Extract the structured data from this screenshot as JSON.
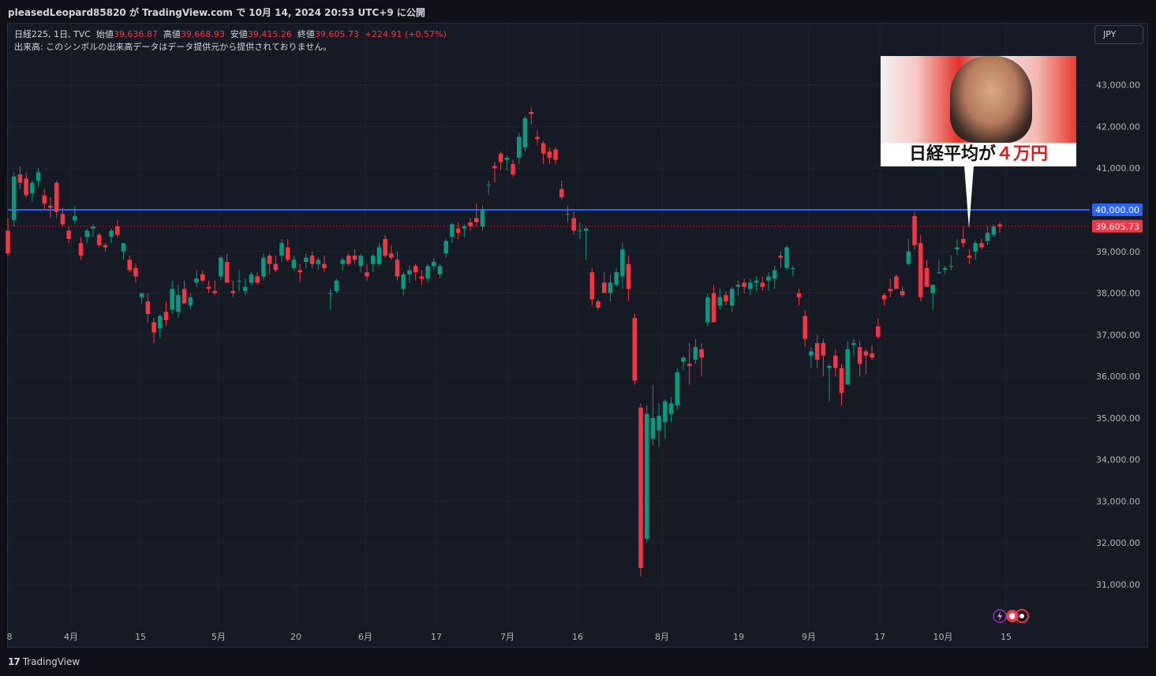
{
  "header": {
    "publish_line": "pleasedLeopard85820 が TradingView.com で 10月 14, 2024 20:53 UTC+9 に公開"
  },
  "legend": {
    "symbol": "日経225, 1日, TVC",
    "open_label": "始値",
    "open_value": "39,636.87",
    "high_label": "高値",
    "high_value": "39,668.93",
    "low_label": "安値",
    "low_value": "39,415.26",
    "close_label": "終値",
    "close_value": "39,605.73",
    "change": "+224.91 (+0.57%)",
    "volume_note": "出来高: このシンボルの出来高データはデータ提供元から提供されておりません。"
  },
  "currency_button": "JPY",
  "footer": {
    "brand": "TradingView",
    "logo": "17"
  },
  "thumbnail": {
    "caption_prefix": "日経平均が",
    "caption_highlight": "４万円"
  },
  "colors": {
    "up": "#089981",
    "down": "#f23645",
    "hline": "#2962ff",
    "background": "#161a25",
    "grid": "#1f2330",
    "text": "#b2b5be"
  },
  "chart_data": {
    "type": "candlestick",
    "title": "",
    "symbol": "日経225",
    "interval": "1日",
    "source": "TVC",
    "currency": "JPY",
    "ylim": [
      30000,
      43900
    ],
    "y_ticks": [
      31000,
      32000,
      33000,
      34000,
      35000,
      36000,
      37000,
      38000,
      39000,
      40000,
      41000,
      42000,
      43000
    ],
    "y_tick_labels": [
      "31,000.00",
      "32,000.00",
      "33,000.00",
      "34,000.00",
      "35,000.00",
      "36,000.00",
      "37,000.00",
      "38,000.00",
      "39,000.00",
      "40,000.00",
      "41,000.00",
      "42,000.00",
      "43,000.00"
    ],
    "x_tick_labels": [
      "8",
      "4月",
      "15",
      "5月",
      "20",
      "6月",
      "17",
      "7月",
      "16",
      "8月",
      "19",
      "9月",
      "17",
      "10月",
      "15"
    ],
    "horizontal_line": {
      "value": 40000,
      "label": "40,000.00",
      "color": "#2962ff"
    },
    "last_price": {
      "value": 39605.73,
      "label": "39,605.73",
      "color": "#f23645"
    },
    "grid": true,
    "candles": [
      [
        39500,
        39800,
        38900,
        38950
      ],
      [
        39750,
        40900,
        39600,
        40800
      ],
      [
        40850,
        41050,
        40500,
        40650
      ],
      [
        40750,
        40900,
        40300,
        40350
      ],
      [
        40400,
        40700,
        40200,
        40650
      ],
      [
        40700,
        41000,
        40550,
        40900
      ],
      [
        40350,
        40500,
        40000,
        40150
      ],
      [
        40100,
        40300,
        39800,
        40050
      ],
      [
        40650,
        40700,
        39800,
        39950
      ],
      [
        39900,
        40050,
        39600,
        39650
      ],
      [
        39500,
        39600,
        39200,
        39300
      ],
      [
        39750,
        40100,
        39650,
        39850
      ],
      [
        39200,
        39350,
        38800,
        38900
      ],
      [
        39350,
        39550,
        39200,
        39500
      ],
      [
        39550,
        39650,
        39350,
        39600
      ],
      [
        39400,
        39450,
        39100,
        39150
      ],
      [
        39150,
        39200,
        39000,
        39100
      ],
      [
        39350,
        39550,
        39200,
        39500
      ],
      [
        39600,
        39750,
        39350,
        39400
      ],
      [
        39000,
        39200,
        38800,
        39200
      ],
      [
        38800,
        38900,
        38500,
        38550
      ],
      [
        38600,
        38700,
        38250,
        38400
      ],
      [
        37900,
        38000,
        37750,
        38000
      ],
      [
        37800,
        38000,
        37300,
        37500
      ],
      [
        37300,
        37400,
        36800,
        37050
      ],
      [
        37150,
        37500,
        36900,
        37450
      ],
      [
        37550,
        37800,
        37200,
        37350
      ],
      [
        37600,
        38300,
        37500,
        38100
      ],
      [
        37550,
        38200,
        37400,
        37950
      ],
      [
        38100,
        38300,
        37750,
        37750
      ],
      [
        37700,
        38000,
        37600,
        37900
      ],
      [
        38250,
        38550,
        38150,
        38350
      ],
      [
        38450,
        38550,
        38250,
        38300
      ],
      [
        38150,
        38300,
        38000,
        38100
      ],
      [
        38050,
        38300,
        37950,
        38000
      ],
      [
        38400,
        38900,
        38300,
        38850
      ],
      [
        38750,
        38950,
        38250,
        38250
      ],
      [
        38050,
        38300,
        37900,
        38000
      ],
      [
        38300,
        38550,
        38050,
        38300
      ],
      [
        38050,
        38350,
        37950,
        38150
      ],
      [
        38250,
        38500,
        38200,
        38450
      ],
      [
        38400,
        38500,
        38200,
        38250
      ],
      [
        38400,
        38950,
        38300,
        38850
      ],
      [
        38900,
        38950,
        38450,
        38700
      ],
      [
        38700,
        38900,
        38500,
        38550
      ],
      [
        38900,
        39300,
        38750,
        39200
      ],
      [
        39100,
        39300,
        38750,
        38800
      ],
      [
        38600,
        38900,
        38550,
        38800
      ],
      [
        38550,
        38700,
        38250,
        38500
      ],
      [
        38750,
        38950,
        38600,
        38850
      ],
      [
        38900,
        39000,
        38600,
        38700
      ],
      [
        38700,
        38850,
        38550,
        38800
      ],
      [
        38700,
        38900,
        38500,
        38600
      ],
      [
        38000,
        38100,
        37600,
        38000
      ],
      [
        38050,
        38350,
        38000,
        38300
      ],
      [
        38700,
        38850,
        38550,
        38800
      ],
      [
        38900,
        38950,
        38650,
        38700
      ],
      [
        38900,
        39050,
        38700,
        38800
      ],
      [
        38650,
        38950,
        38500,
        38900
      ],
      [
        38500,
        38700,
        38300,
        38400
      ],
      [
        38700,
        38950,
        38500,
        38900
      ],
      [
        38700,
        39200,
        38650,
        39100
      ],
      [
        39300,
        39400,
        38850,
        38900
      ],
      [
        38950,
        39150,
        38800,
        38850
      ],
      [
        38800,
        39000,
        38300,
        38400
      ],
      [
        38100,
        38500,
        37950,
        38450
      ],
      [
        38450,
        38650,
        38250,
        38550
      ],
      [
        38650,
        38700,
        38300,
        38500
      ],
      [
        38400,
        38550,
        38200,
        38350
      ],
      [
        38350,
        38700,
        38250,
        38650
      ],
      [
        38650,
        38850,
        38550,
        38750
      ],
      [
        38450,
        38700,
        38350,
        38650
      ],
      [
        38950,
        39300,
        38850,
        39250
      ],
      [
        39350,
        39700,
        39200,
        39650
      ],
      [
        39550,
        39700,
        39300,
        39450
      ],
      [
        39550,
        39650,
        39350,
        39600
      ],
      [
        39700,
        39800,
        39500,
        39600
      ],
      [
        39800,
        40150,
        39600,
        39700
      ],
      [
        39600,
        40100,
        39500,
        40000
      ],
      [
        40600,
        40700,
        40350,
        40600
      ],
      [
        41050,
        41150,
        40650,
        41000
      ],
      [
        41350,
        41400,
        40950,
        41150
      ],
      [
        41200,
        41300,
        40950,
        41250
      ],
      [
        41100,
        41200,
        40800,
        40850
      ],
      [
        41250,
        41850,
        41100,
        41750
      ],
      [
        41500,
        42250,
        41400,
        42200
      ],
      [
        42350,
        42450,
        42050,
        42300
      ],
      [
        41750,
        41900,
        41550,
        41700
      ],
      [
        41600,
        41650,
        41100,
        41350
      ],
      [
        41400,
        41500,
        41100,
        41250
      ],
      [
        41450,
        41500,
        41100,
        41200
      ],
      [
        40500,
        40700,
        40250,
        40300
      ],
      [
        39900,
        40100,
        39700,
        39900
      ],
      [
        39800,
        39950,
        39400,
        39500
      ],
      [
        39500,
        39700,
        39300,
        39500
      ],
      [
        39500,
        39600,
        38800,
        39550
      ],
      [
        38500,
        38600,
        37700,
        37850
      ],
      [
        37800,
        37850,
        37600,
        37650
      ],
      [
        38250,
        38500,
        38050,
        38000
      ],
      [
        38000,
        38450,
        37800,
        38250
      ],
      [
        38200,
        38600,
        38150,
        38500
      ],
      [
        38400,
        39200,
        38100,
        39050
      ],
      [
        38700,
        38900,
        37800,
        38100
      ],
      [
        37400,
        37500,
        35800,
        35900
      ],
      [
        35250,
        35350,
        31200,
        31400
      ],
      [
        32100,
        35300,
        32000,
        35100
      ],
      [
        34500,
        35800,
        34350,
        35000
      ],
      [
        34700,
        35350,
        34300,
        35050
      ],
      [
        34900,
        35450,
        34500,
        35400
      ],
      [
        35100,
        35500,
        34900,
        35350
      ],
      [
        35300,
        36200,
        35200,
        36100
      ],
      [
        36350,
        36500,
        36150,
        36450
      ],
      [
        36300,
        36800,
        35800,
        36250
      ],
      [
        36400,
        36900,
        36300,
        36700
      ],
      [
        36650,
        36800,
        36000,
        36450
      ],
      [
        37300,
        38000,
        37200,
        37900
      ],
      [
        38000,
        38200,
        37300,
        37300
      ],
      [
        37700,
        38100,
        37600,
        37900
      ],
      [
        37950,
        38050,
        37700,
        37800
      ],
      [
        37700,
        38150,
        37550,
        38100
      ],
      [
        38150,
        38300,
        37950,
        38200
      ],
      [
        38250,
        38350,
        38000,
        38150
      ],
      [
        38100,
        38350,
        37950,
        38250
      ],
      [
        38250,
        38400,
        38050,
        38300
      ],
      [
        38250,
        38400,
        38050,
        38150
      ],
      [
        38300,
        38500,
        38050,
        38400
      ],
      [
        38350,
        38650,
        38100,
        38550
      ],
      [
        38900,
        39000,
        38600,
        38850
      ],
      [
        38600,
        39150,
        38550,
        39100
      ],
      [
        38600,
        38650,
        38400,
        38600
      ],
      [
        38000,
        38100,
        37700,
        37900
      ],
      [
        37450,
        37600,
        36700,
        36900
      ],
      [
        36500,
        36700,
        36200,
        36600
      ],
      [
        36800,
        37000,
        36200,
        36400
      ],
      [
        36800,
        36900,
        36000,
        36500
      ],
      [
        36200,
        36300,
        35400,
        36250
      ],
      [
        36500,
        36650,
        36000,
        36200
      ],
      [
        36200,
        36300,
        35300,
        35600
      ],
      [
        35800,
        36850,
        35800,
        36650
      ],
      [
        36750,
        36900,
        36500,
        36800
      ],
      [
        36700,
        36850,
        36000,
        36300
      ],
      [
        36600,
        36650,
        36050,
        36500
      ],
      [
        36550,
        36750,
        36400,
        36450
      ],
      [
        37200,
        37400,
        36900,
        36950
      ],
      [
        37950,
        38000,
        37700,
        37850
      ],
      [
        38100,
        38350,
        37900,
        38050
      ],
      [
        38400,
        38450,
        38100,
        38100
      ],
      [
        38050,
        38150,
        37900,
        37950
      ],
      [
        38700,
        39300,
        38650,
        39000
      ],
      [
        39850,
        39950,
        39050,
        39150
      ],
      [
        39200,
        39400,
        37800,
        37900
      ],
      [
        38600,
        38800,
        38150,
        38150
      ],
      [
        38000,
        38200,
        37600,
        38200
      ],
      [
        38500,
        38800,
        38450,
        38500
      ],
      [
        38550,
        38650,
        38450,
        38600
      ],
      [
        38650,
        38900,
        38550,
        38650
      ],
      [
        39050,
        39300,
        38900,
        39100
      ],
      [
        39300,
        39600,
        39100,
        39200
      ],
      [
        38900,
        39050,
        38700,
        38850
      ],
      [
        39000,
        39250,
        38800,
        39200
      ],
      [
        39200,
        39300,
        39050,
        39100
      ],
      [
        39250,
        39600,
        39150,
        39450
      ],
      [
        39400,
        39650,
        39350,
        39600
      ],
      [
        39650,
        39700,
        39450,
        39600
      ]
    ]
  }
}
